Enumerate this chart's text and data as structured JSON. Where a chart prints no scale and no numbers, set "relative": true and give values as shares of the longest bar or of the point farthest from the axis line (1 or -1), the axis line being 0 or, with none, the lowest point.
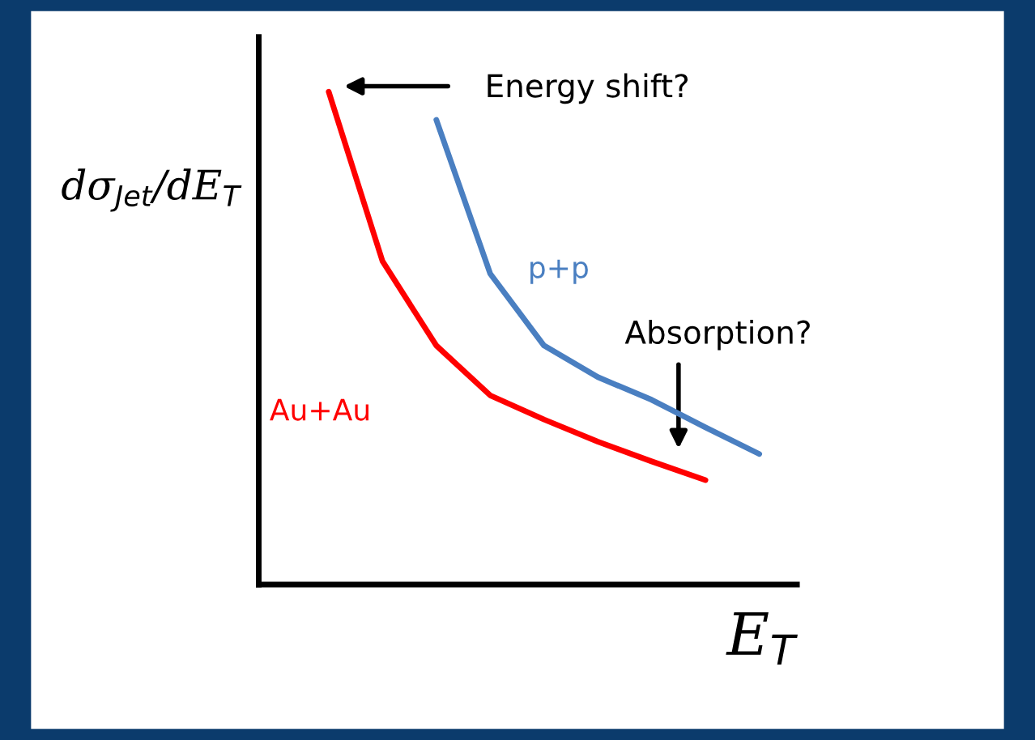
{
  "chart_data": {
    "type": "line",
    "relative": true,
    "marker": "none",
    "line_style": "solid",
    "xlabel": "E$_{T}$",
    "ylabel": "dσ$_{Jet}$/dE$_{T}$",
    "categories": [
      null,
      null,
      null,
      null,
      null,
      null,
      null,
      null,
      null
    ],
    "series": [
      {
        "name": "p+p",
        "color": "#4a7fc1",
        "values": [
          null,
          null,
          0.943,
          0.631,
          0.485,
          0.421,
          0.375,
          0.319,
          0.265
        ]
      },
      {
        "name": "Au+Au",
        "color": "#ff0000",
        "values": [
          1.0,
          0.656,
          0.485,
          0.384,
          0.335,
          0.29,
          0.25,
          0.212,
          null
        ]
      }
    ],
    "annotations": [
      "Energy shift?",
      "Absorption?"
    ]
  }
}
